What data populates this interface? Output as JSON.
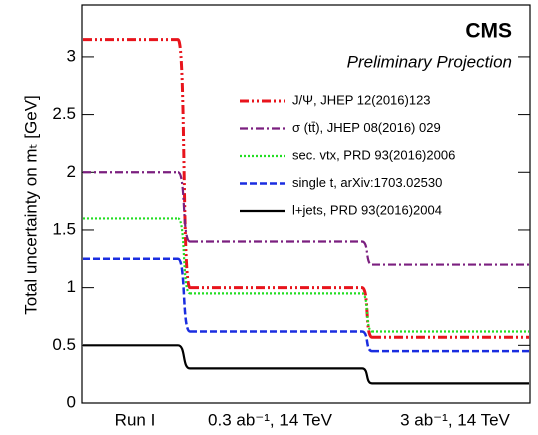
{
  "chart_data": {
    "type": "step",
    "annotations": [
      "CMS",
      "Preliminary Projection"
    ],
    "y_label": "Total uncertainty on mₜ [GeV]",
    "categories": [
      "Run I",
      "0.3 ab⁻¹, 14 TeV",
      "3 ab⁻¹, 14 TeV"
    ],
    "ylim": [
      0,
      3.45
    ],
    "yticks": [
      0,
      0.5,
      1,
      1.5,
      2,
      2.5,
      3
    ],
    "series": [
      {
        "name": "J/Ψ, JHEP 12(2016)123",
        "color": "#e8141c",
        "linestyle": "dashdotdot",
        "values": [
          3.15,
          1.0,
          0.57
        ]
      },
      {
        "name": "σ (tt̄), JHEP 08(2016) 029",
        "color": "#7b1f7f",
        "linestyle": "dashdot",
        "values": [
          2.0,
          1.4,
          1.2
        ]
      },
      {
        "name": "sec. vtx, PRD 93(2016)2006",
        "color": "#22dd22",
        "linestyle": "dotted",
        "values": [
          1.6,
          0.95,
          0.62
        ]
      },
      {
        "name": "single t, arXiv:1703.02530",
        "color": "#1a2de0",
        "linestyle": "dashed",
        "values": [
          1.25,
          0.62,
          0.45
        ]
      },
      {
        "name": "l+jets, PRD 93(2016)2004",
        "color": "#000000",
        "linestyle": "solid",
        "values": [
          0.5,
          0.3,
          0.17
        ]
      }
    ]
  }
}
